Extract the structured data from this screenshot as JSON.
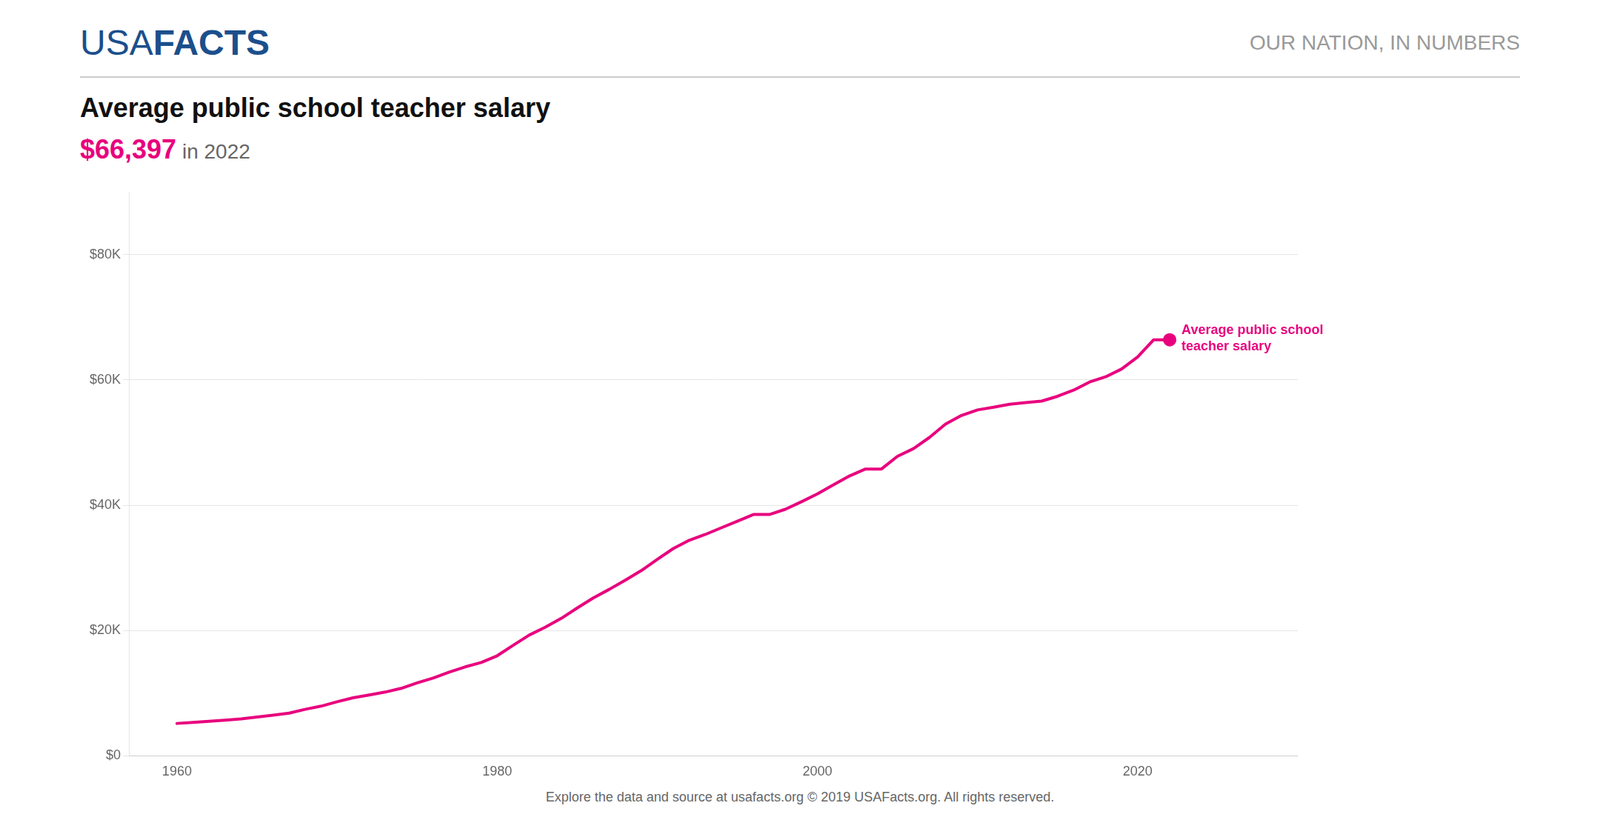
{
  "chart_data": {
    "type": "line",
    "title": "Average public school teacher salary",
    "subtitle": [
      "$66,397",
      " in 2022"
    ],
    "x": [
      1960,
      1961,
      1962,
      1963,
      1964,
      1965,
      1966,
      1967,
      1968,
      1969,
      1970,
      1971,
      1972,
      1973,
      1974,
      1975,
      1976,
      1977,
      1978,
      1979,
      1980,
      1981,
      1982,
      1983,
      1984,
      1985,
      1986,
      1987,
      1988,
      1989,
      1990,
      1991,
      1992,
      1993,
      1994,
      1995,
      1996,
      1997,
      1998,
      1999,
      2000,
      2001,
      2002,
      2003,
      2004,
      2005,
      2006,
      2007,
      2008,
      2009,
      2010,
      2011,
      2012,
      2013,
      2014,
      2015,
      2016,
      2017,
      2018,
      2019,
      2020,
      2021,
      2022
    ],
    "values": [
      5174,
      5340,
      5515,
      5692,
      5900,
      6195,
      6485,
      6821,
      7423,
      7930,
      8626,
      9270,
      9705,
      10174,
      10770,
      11641,
      12424,
      13354,
      14198,
      14891,
      15970,
      17644,
      19274,
      20531,
      21935,
      23600,
      25199,
      26569,
      28031,
      29567,
      31367,
      33084,
      34413,
      35334,
      36394,
      37436,
      38509,
      38509,
      39347,
      40544,
      41807,
      43262,
      44664,
      45776,
      45771,
      47808,
      49026,
      50816,
      52949,
      54319,
      55202,
      55623,
      56103,
      56383,
      56610,
      57379,
      58353,
      59660,
      60483,
      61730,
      63645,
      66397,
      66397
    ],
    "color": "#E8007D",
    "marker": "circle",
    "xlim": [
      1957,
      2030
    ],
    "xticks": [
      1960,
      1980,
      2000,
      2020
    ],
    "ylim": [
      0,
      90000
    ],
    "yticks": [
      {
        "value": 0,
        "label": "$0"
      },
      {
        "value": 20000,
        "label": "$20K"
      },
      {
        "value": 40000,
        "label": "$40K"
      },
      {
        "value": 60000,
        "label": "$60K"
      },
      {
        "value": 80000,
        "label": "$80K"
      }
    ],
    "grid": "y",
    "annotations": [
      {
        "text": [
          "Average public school",
          "teacher salary"
        ],
        "color": "#E8007D"
      },
      {
        "text": [
          "USA",
          "FACTS"
        ],
        "color": "#1B4F8C"
      },
      {
        "text": [
          "OUR NATION, IN NUMBERS"
        ]
      },
      {
        "text": [
          "Explore the data and source at usafacts.org © 2019 USAFacts.org. All rights reserved."
        ]
      }
    ]
  }
}
